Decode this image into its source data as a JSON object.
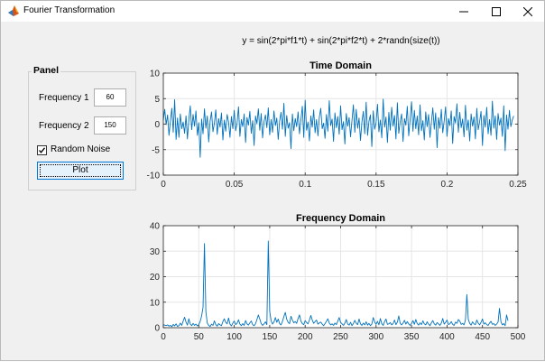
{
  "window": {
    "title": "Fourier Transformation"
  },
  "formula": "y = sin(2*pi*f1*t) + sin(2*pi*f2*t) + 2*randn(size(t))",
  "panel": {
    "title": "Panel",
    "freq1_label": "Frequency 1",
    "freq1_value": "60",
    "freq2_label": "Frequency 2",
    "freq2_value": "150",
    "noise_label": "Random Noise",
    "noise_checked": true,
    "plot_label": "Plot"
  },
  "colors": {
    "line": "#0072bd",
    "grid": "#e6e6e6",
    "axis": "#262626"
  },
  "chart_data": [
    {
      "type": "line",
      "title": "Time Domain",
      "xlim": [
        0,
        0.25
      ],
      "ylim": [
        -10,
        10
      ],
      "xticks": [
        0,
        0.05,
        0.1,
        0.15,
        0.2,
        0.25
      ],
      "xtick_labels": [
        "0",
        "0.05",
        "0.1",
        "0.15",
        "0.2",
        "0.25"
      ],
      "yticks": [
        -10,
        -5,
        0,
        5,
        10
      ],
      "ytick_labels": [
        "-10",
        "-5",
        "0",
        "5",
        "10"
      ],
      "grid": true,
      "x_step": 0.001,
      "y": [
        0.8,
        2.9,
        -0.1,
        1.8,
        -2.2,
        0.6,
        3.1,
        -1.6,
        4.8,
        -3.0,
        1.2,
        -2.6,
        2.0,
        -0.9,
        0.4,
        -1.8,
        1.6,
        -2.9,
        0.9,
        3.6,
        -1.1,
        1.9,
        -0.4,
        2.6,
        -2.2,
        0.3,
        -6.5,
        1.0,
        -1.9,
        3.0,
        -0.8,
        1.6,
        -3.5,
        0.6,
        2.4,
        -1.5,
        0.2,
        2.8,
        -2.0,
        1.1,
        -0.6,
        2.2,
        -3.1,
        0.8,
        -1.4,
        1.9,
        0.4,
        -2.6,
        1.5,
        -0.9,
        2.7,
        -1.3,
        0.2,
        3.4,
        -2.4,
        0.9,
        -0.5,
        2.0,
        -3.6,
        1.3,
        -0.2,
        2.5,
        -1.8,
        0.7,
        -4.2,
        1.6,
        0.1,
        3.0,
        -1.2,
        2.1,
        -2.7,
        0.5,
        1.8,
        -0.7,
        3.2,
        -2.1,
        0.9,
        -1.6,
        2.6,
        -0.3,
        1.2,
        -3.0,
        0.6,
        2.3,
        -1.0,
        4.1,
        -2.4,
        1.7,
        -0.8,
        0.3,
        -4.8,
        2.0,
        -1.3,
        1.1,
        -0.5,
        2.4,
        -1.9,
        0.8,
        3.5,
        -2.6,
        4.7,
        -1.2,
        0.4,
        -3.3,
        1.6,
        -0.6,
        2.8,
        -1.7,
        0.9,
        -2.3,
        1.4,
        3.1,
        -0.9,
        0.2,
        -2.8,
        1.9,
        -1.4,
        4.6,
        -0.3,
        1.0,
        -3.4,
        2.2,
        -0.7,
        1.5,
        -2.0,
        3.6,
        -1.1,
        0.5,
        -3.9,
        2.1,
        -0.4,
        1.3,
        -2.5,
        0.7,
        3.8,
        -1.6,
        2.9,
        -0.8,
        1.2,
        -3.2,
        0.4,
        2.5,
        -1.9,
        4.3,
        -2.2,
        0.6,
        1.8,
        -4.4,
        2.6,
        -1.0,
        0.3,
        3.9,
        -1.5,
        0.8,
        -2.7,
        4.9,
        -0.6,
        1.4,
        -3.6,
        2.3,
        -1.2,
        3.3,
        -0.4,
        1.7,
        -2.9,
        4.2,
        -1.8,
        0.5,
        2.0,
        -3.4,
        1.1,
        -0.2,
        3.5,
        -2.3,
        0.9,
        4.4,
        -1.4,
        2.7,
        -0.9,
        1.6,
        -2.1,
        3.8,
        -1.3,
        0.7,
        -3.1,
        2.4,
        -0.5,
        1.9,
        -2.6,
        0.4,
        3.2,
        -1.0,
        2.2,
        -4.6,
        1.3,
        -0.8,
        2.9,
        -1.7,
        0.6,
        3.4,
        -2.4,
        1.1,
        -0.3,
        2.6,
        -3.8,
        1.5,
        0.2,
        4.0,
        -1.6,
        2.3,
        -0.7,
        1.0,
        -2.5,
        3.7,
        -1.2,
        0.8,
        -3.3,
        2.0,
        -0.4,
        1.4,
        -2.9,
        3.1,
        -1.1,
        0.5,
        2.5,
        -4.2,
        1.7,
        -0.6,
        3.3,
        -1.9,
        0.9,
        -2.2,
        4.5,
        -0.8,
        1.6,
        -3.0,
        2.1,
        -0.2,
        1.2,
        -2.4,
        3.6,
        -5.2,
        1.8,
        -1.0,
        2.7,
        -0.5,
        0.8,
        1.6
      ]
    },
    {
      "type": "line",
      "title": "Frequency Domain",
      "xlim": [
        0,
        500
      ],
      "ylim": [
        0,
        40
      ],
      "xticks": [
        0,
        50,
        100,
        150,
        200,
        250,
        300,
        350,
        400,
        450,
        500
      ],
      "xtick_labels": [
        "0",
        "50",
        "100",
        "150",
        "200",
        "250",
        "300",
        "350",
        "400",
        "450",
        "500"
      ],
      "yticks": [
        0,
        10,
        20,
        30,
        40
      ],
      "ytick_labels": [
        "0",
        "10",
        "20",
        "30",
        "40"
      ],
      "grid": true,
      "x_step": 2,
      "y": [
        1.2,
        1.0,
        0.8,
        1.1,
        0.6,
        0.9,
        0.4,
        1.3,
        0.7,
        1.5,
        0.5,
        0.8,
        1.8,
        0.9,
        2.6,
        4.1,
        2.2,
        1.0,
        3.5,
        1.4,
        0.8,
        1.7,
        0.9,
        1.4,
        0.7,
        1.2,
        2.5,
        4.6,
        8.0,
        33.0,
        6.2,
        1.8,
        0.9,
        0.5,
        1.4,
        0.9,
        2.7,
        1.2,
        0.6,
        1.6,
        1.1,
        0.8,
        2.4,
        3.5,
        2.1,
        1.5,
        3.8,
        1.4,
        0.7,
        1.8,
        2.6,
        1.2,
        1.7,
        3.1,
        1.4,
        0.8,
        1.6,
        0.9,
        2.8,
        1.5,
        1.0,
        1.9,
        2.6,
        1.2,
        0.8,
        1.5,
        3.2,
        5.0,
        3.4,
        1.6,
        0.9,
        1.5,
        2.3,
        1.2,
        34.0,
        6.5,
        2.7,
        1.4,
        2.2,
        4.0,
        2.1,
        3.4,
        1.6,
        1.1,
        2.5,
        4.4,
        6.0,
        3.3,
        2.1,
        1.6,
        4.5,
        3.0,
        1.9,
        2.4,
        1.7,
        3.6,
        5.0,
        2.6,
        1.6,
        1.2,
        2.8,
        2.0,
        1.5,
        3.0,
        4.8,
        3.0,
        1.7,
        2.4,
        3.0,
        1.4,
        1.9,
        2.2,
        1.4,
        0.8,
        1.6,
        2.5,
        3.5,
        1.8,
        1.1,
        1.5,
        0.9,
        1.8,
        1.2,
        2.6,
        4.0,
        2.1,
        1.5,
        0.9,
        1.8,
        3.2,
        1.4,
        1.0,
        2.1,
        0.8,
        1.6,
        2.9,
        1.7,
        1.2,
        3.4,
        1.5,
        0.9,
        1.8,
        1.1,
        2.3,
        1.0,
        1.7,
        0.8,
        1.4,
        4.0,
        2.2,
        1.3,
        2.5,
        1.1,
        3.6,
        1.6,
        0.9,
        2.4,
        3.4,
        1.3,
        1.5,
        2.0,
        1.1,
        1.6,
        3.0,
        1.2,
        2.2,
        4.6,
        1.7,
        1.1,
        1.8,
        2.9,
        1.4,
        2.4,
        1.5,
        0.9,
        1.7,
        2.8,
        1.3,
        3.2,
        1.6,
        1.0,
        1.9,
        1.2,
        2.7,
        1.5,
        1.1,
        2.3,
        1.4,
        0.8,
        1.9,
        2.8,
        1.5,
        1.0,
        2.0,
        1.5,
        0.9,
        1.8,
        3.6,
        1.4,
        2.1,
        3.0,
        1.2,
        1.5,
        2.4,
        1.3,
        0.9,
        2.2,
        1.7,
        3.2,
        2.6,
        1.3,
        1.7,
        1.1,
        3.0,
        13.0,
        3.3,
        1.7,
        1.0,
        2.3,
        1.5,
        1.2,
        3.0,
        1.8,
        1.1,
        2.1,
        3.4,
        1.4,
        1.9,
        1.2,
        0.9,
        1.8,
        2.5,
        1.3,
        1.6,
        0.9,
        1.4,
        2.2,
        7.6,
        2.4,
        1.1,
        1.6,
        0.8,
        5.0,
        2.7
      ]
    }
  ]
}
